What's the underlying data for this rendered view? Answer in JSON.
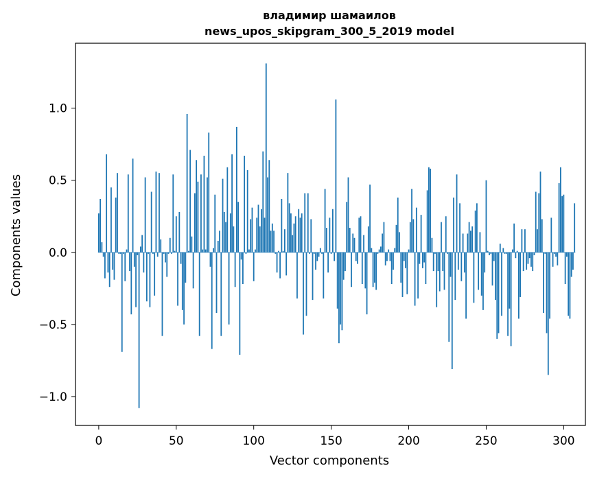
{
  "chart_data": {
    "type": "bar",
    "title_line1": "владимир шамаилов",
    "title_line2": "news_upos_skipgram_300_5_2019 model",
    "xlabel": "Vector components",
    "ylabel": "Components values",
    "xlim": [
      -15,
      314
    ],
    "ylim": [
      -1.2,
      1.45
    ],
    "xticks": [
      0,
      50,
      100,
      150,
      200,
      250,
      300
    ],
    "yticks": [
      -1.0,
      -0.5,
      0.0,
      0.5,
      1.0
    ],
    "xtick_labels": [
      "0",
      "50",
      "100",
      "150",
      "200",
      "250",
      "300"
    ],
    "ytick_labels": [
      "−1.0",
      "−0.5",
      "0.0",
      "0.5",
      "1.0"
    ],
    "bar_color": "#1f77b4",
    "values": [
      0.27,
      0.37,
      0.07,
      -0.03,
      -0.18,
      0.68,
      -0.14,
      -0.24,
      0.45,
      -0.12,
      -0.19,
      0.38,
      0.55,
      -0.01,
      -0.01,
      -0.69,
      -0.01,
      -0.2,
      0.02,
      0.54,
      -0.13,
      -0.43,
      0.65,
      -0.1,
      -0.38,
      -0.02,
      -1.08,
      0.04,
      0.12,
      -0.14,
      0.52,
      -0.34,
      -0.01,
      -0.38,
      0.42,
      -0.01,
      -0.3,
      0.56,
      -0.03,
      0.55,
      0.09,
      -0.58,
      -0.01,
      -0.07,
      -0.17,
      -0.01,
      0.1,
      -0.01,
      0.54,
      0.01,
      0.25,
      -0.37,
      0.28,
      -0.08,
      -0.4,
      -0.5,
      -0.21,
      0.96,
      0.01,
      0.71,
      0.11,
      -0.25,
      0.41,
      0.64,
      0.49,
      -0.58,
      0.54,
      0.02,
      0.67,
      0.02,
      0.52,
      0.83,
      -0.1,
      -0.67,
      0.03,
      0.4,
      -0.42,
      0.08,
      0.15,
      -0.58,
      0.51,
      0.28,
      0.21,
      0.59,
      -0.5,
      0.27,
      0.68,
      0.18,
      -0.24,
      0.87,
      0.35,
      -0.71,
      -0.05,
      -0.22,
      0.67,
      -0.01,
      0.57,
      0.02,
      0.23,
      0.31,
      -0.2,
      0.02,
      0.24,
      0.33,
      0.18,
      0.3,
      0.7,
      0.24,
      1.31,
      0.52,
      0.64,
      0.15,
      0.2,
      0.15,
      -0.01,
      -0.14,
      0.01,
      -0.18,
      0.37,
      0.01,
      0.16,
      -0.16,
      0.55,
      0.34,
      0.27,
      0.12,
      0.2,
      0.25,
      -0.32,
      0.3,
      0.24,
      0.27,
      -0.57,
      0.41,
      -0.44,
      0.41,
      -0.01,
      0.23,
      -0.33,
      -0.01,
      -0.12,
      -0.06,
      -0.03,
      0.03,
      -0.01,
      -0.32,
      0.44,
      0.17,
      -0.14,
      0.24,
      -0.01,
      0.3,
      -0.06,
      1.06,
      -0.39,
      -0.63,
      -0.5,
      -0.54,
      -0.19,
      -0.13,
      0.35,
      0.52,
      0.17,
      -0.24,
      0.13,
      0.1,
      -0.06,
      -0.08,
      0.24,
      0.25,
      -0.22,
      0.12,
      -0.25,
      -0.43,
      0.18,
      0.47,
      0.03,
      -0.24,
      -0.21,
      -0.26,
      -0.01,
      0.02,
      0.04,
      0.13,
      0.21,
      -0.09,
      -0.06,
      0.02,
      -0.06,
      -0.22,
      -0.12,
      0.03,
      0.19,
      0.38,
      0.14,
      -0.21,
      -0.31,
      -0.06,
      -0.11,
      -0.29,
      0.02,
      0.21,
      0.44,
      0.23,
      -0.37,
      0.31,
      -0.32,
      -0.08,
      0.26,
      -0.11,
      -0.07,
      -0.22,
      0.43,
      0.59,
      0.58,
      0.1,
      -0.13,
      -0.01,
      -0.38,
      -0.13,
      -0.27,
      0.21,
      -0.13,
      -0.26,
      0.25,
      -0.01,
      -0.62,
      -0.17,
      -0.81,
      0.38,
      -0.33,
      0.54,
      -0.12,
      0.34,
      -0.2,
      0.13,
      -0.14,
      -0.46,
      0.13,
      0.21,
      0.15,
      0.18,
      -0.35,
      0.29,
      0.34,
      -0.26,
      0.14,
      -0.3,
      -0.4,
      -0.14,
      0.5,
      0.01,
      -0.02,
      -0.01,
      -0.23,
      -0.06,
      -0.33,
      -0.6,
      -0.56,
      0.06,
      -0.44,
      0.03,
      -0.01,
      -0.01,
      -0.58,
      -0.39,
      -0.65,
      0.02,
      0.2,
      -0.04,
      0.01,
      -0.46,
      -0.31,
      0.16,
      -0.13,
      0.16,
      -0.12,
      -0.08,
      -0.04,
      -0.1,
      -0.13,
      -0.02,
      0.42,
      0.16,
      0.41,
      0.56,
      0.23,
      -0.42,
      -0.01,
      -0.56,
      -0.85,
      -0.46,
      0.24,
      -0.1,
      -0.01,
      -0.03,
      -0.09,
      0.48,
      0.59,
      0.39,
      0.4,
      -0.22,
      -0.03,
      -0.44,
      -0.46,
      -0.17,
      -0.12,
      0.34
    ]
  }
}
